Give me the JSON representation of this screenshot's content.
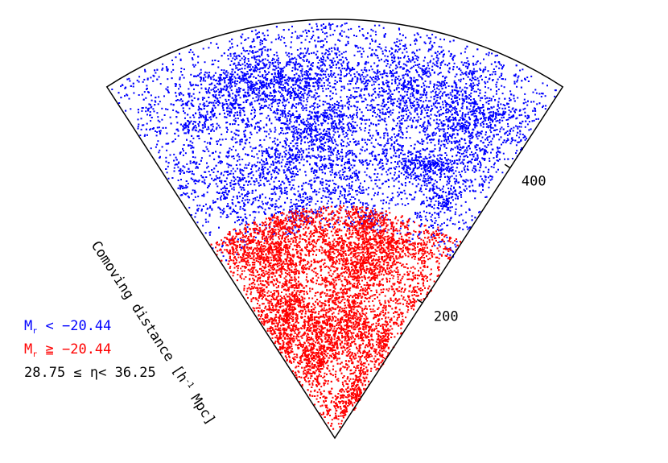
{
  "chart_data": {
    "type": "scatter",
    "title": "",
    "axis": {
      "label": "Comoving distance [h⁻¹ Mpc]",
      "label_parts": {
        "prefix": "Comoving distance [h",
        "sup": "-1",
        "suffix": " Mpc]"
      },
      "ticks": [
        200,
        400
      ],
      "rmax": 520
    },
    "wedge": {
      "opening_angle_deg": 66
    },
    "series": [
      {
        "name": "M_r < -20.44",
        "color": "#0000ff",
        "r_range": [
          260,
          520
        ],
        "approx_points": 9000
      },
      {
        "name": "M_r ≥ -20.44",
        "color": "#ff0000",
        "r_range": [
          0,
          290
        ],
        "approx_points": 9000
      }
    ]
  },
  "legend": {
    "bright": {
      "m": "M",
      "sub": "r",
      "rest": " < −20.44"
    },
    "faint": {
      "m": "M",
      "sub": "r",
      "rest": " ≧ −20.44"
    },
    "eta_range": "28.75 ≤ η< 36.25"
  },
  "colors": {
    "bright": "#0000ff",
    "faint": "#ff0000",
    "axis": "#000000"
  }
}
